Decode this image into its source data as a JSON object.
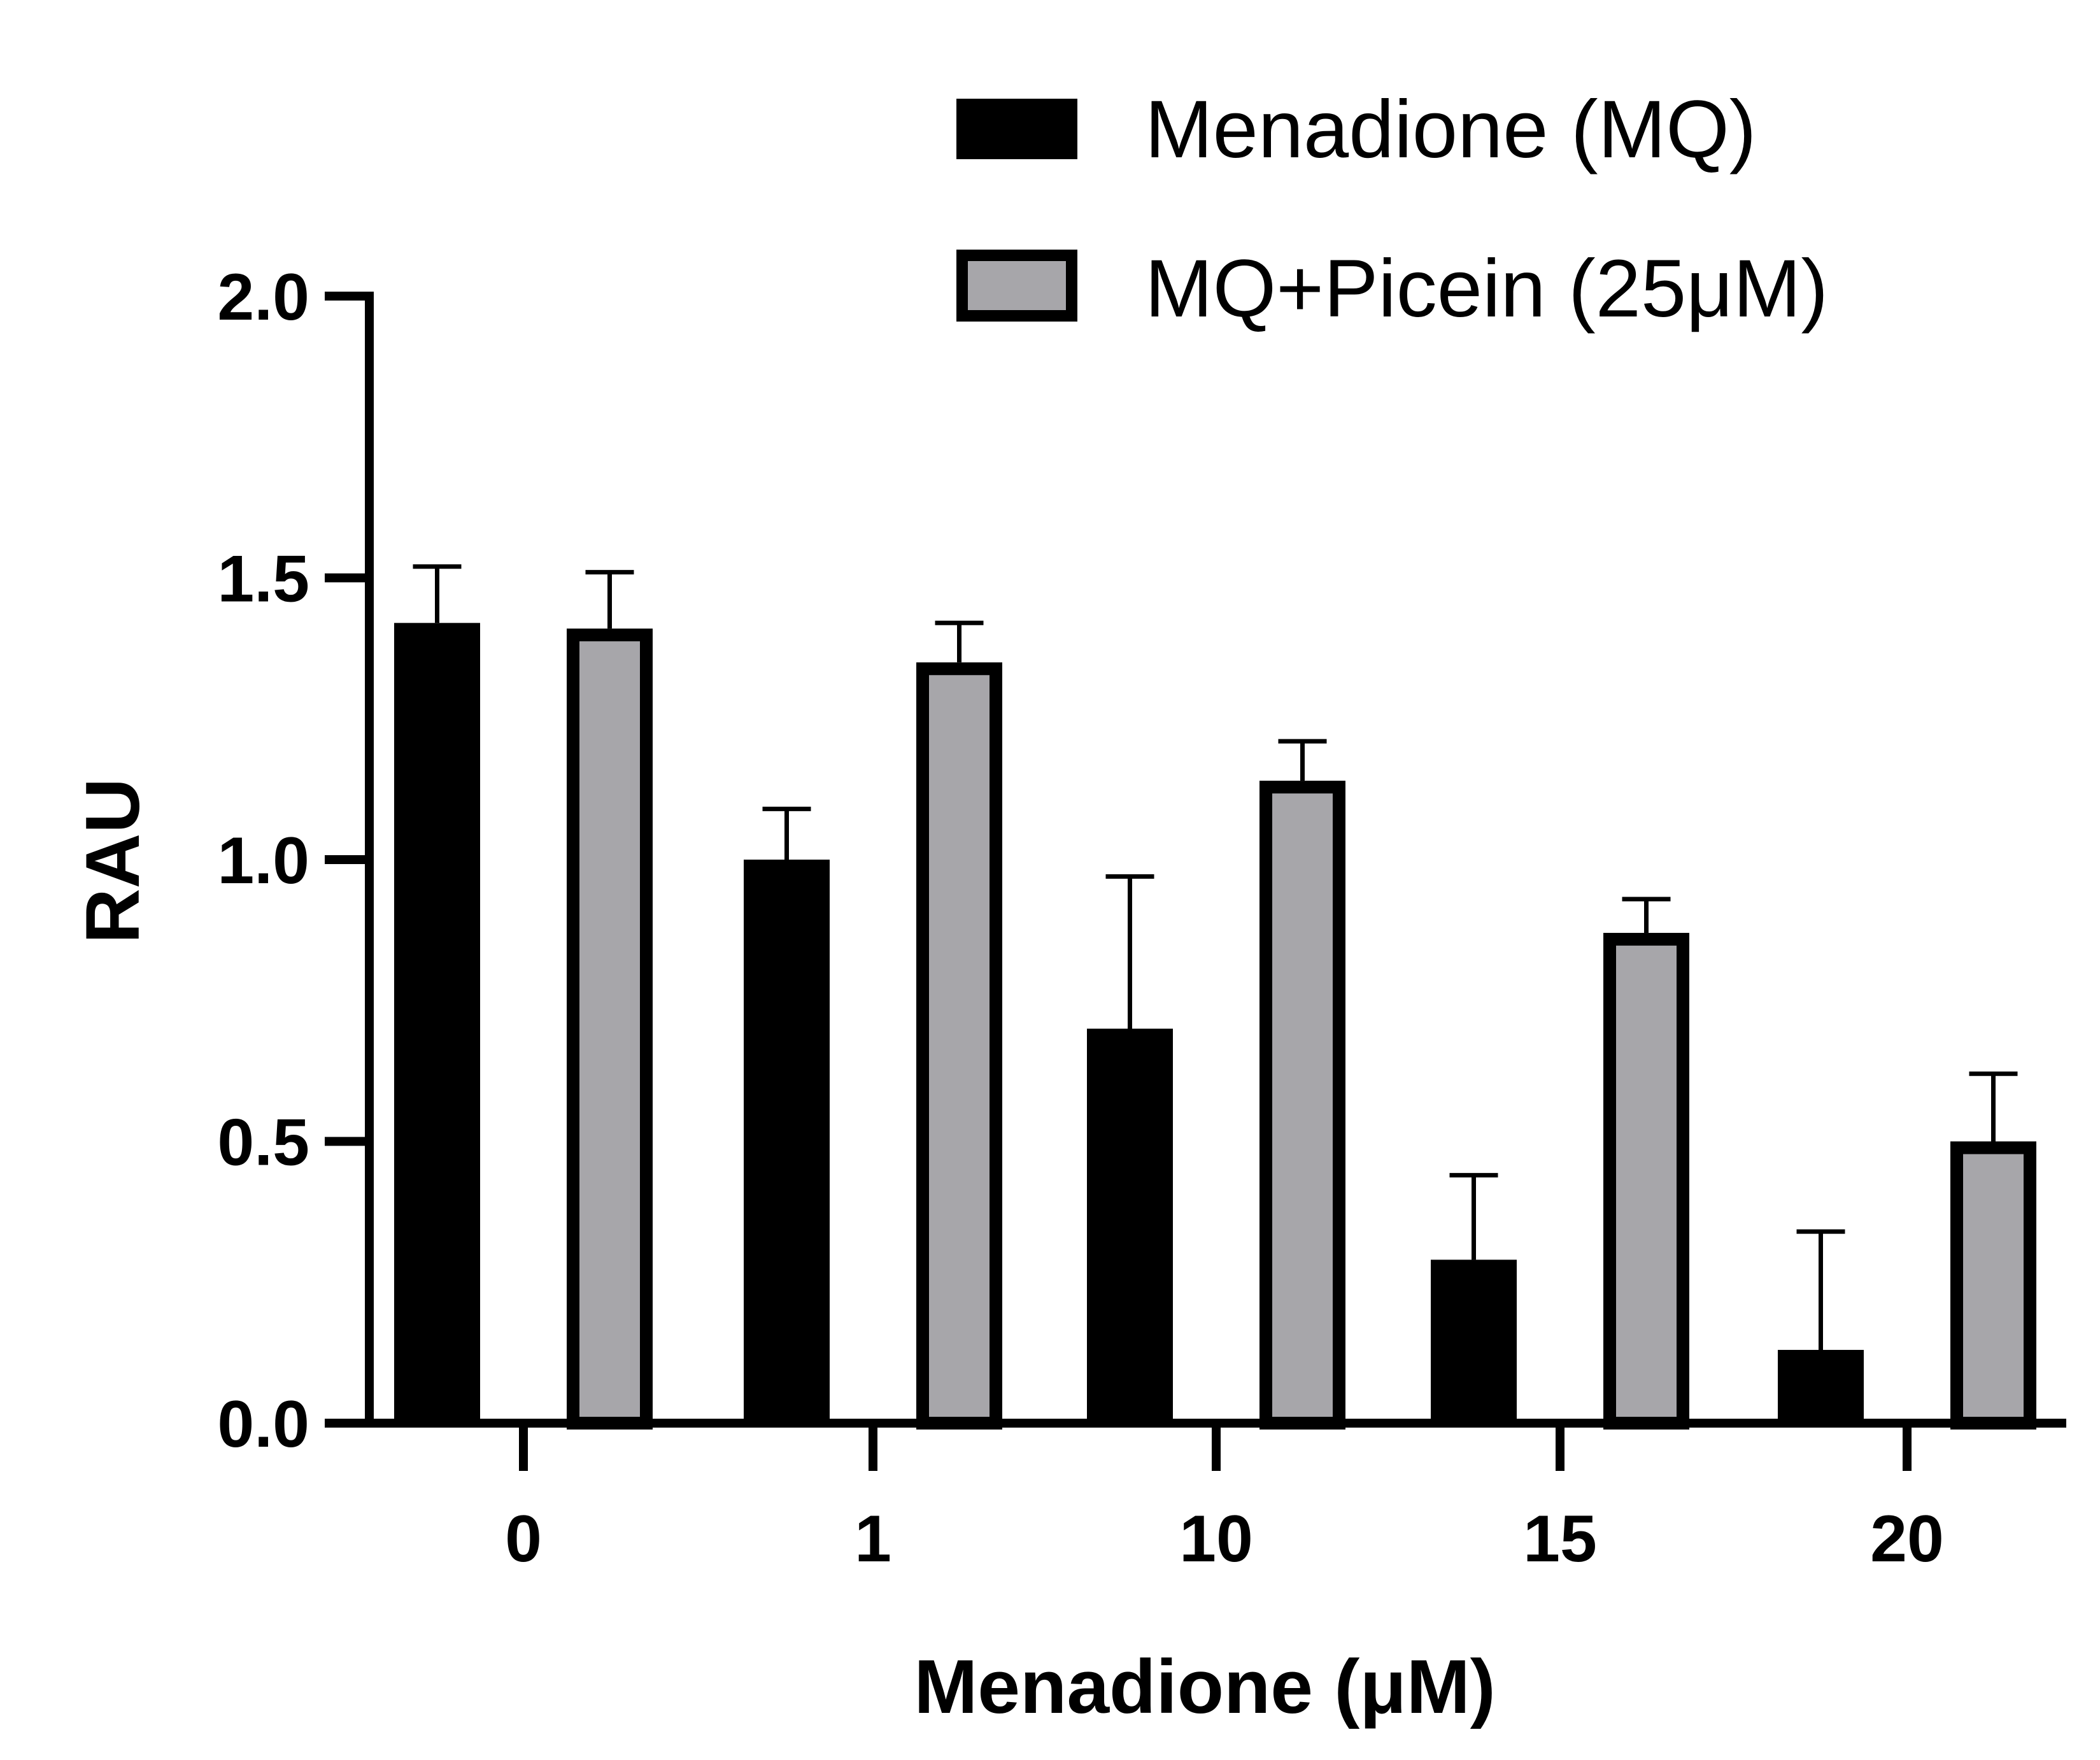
{
  "chart_data": {
    "type": "bar",
    "title": "",
    "xlabel": "Menadione (μM)",
    "ylabel": "RAU",
    "ylim": [
      0,
      2.0
    ],
    "yticks": [
      "0.0",
      "0.5",
      "1.0",
      "1.5",
      "2.0"
    ],
    "categories": [
      "0",
      "1",
      "10",
      "15",
      "20"
    ],
    "legend_position": "top-right",
    "series": [
      {
        "name": "Menadione (MQ)",
        "color": "#000000",
        "values": [
          1.42,
          1.0,
          0.7,
          0.29,
          0.13
        ],
        "errors": [
          0.1,
          0.09,
          0.27,
          0.15,
          0.21
        ]
      },
      {
        "name": "MQ+Picein (25μM)",
        "color": "#a7a6aa",
        "edge_color": "#000000",
        "values": [
          1.41,
          1.35,
          1.14,
          0.87,
          0.5
        ],
        "errors": [
          0.1,
          0.07,
          0.07,
          0.06,
          0.12
        ]
      }
    ]
  }
}
